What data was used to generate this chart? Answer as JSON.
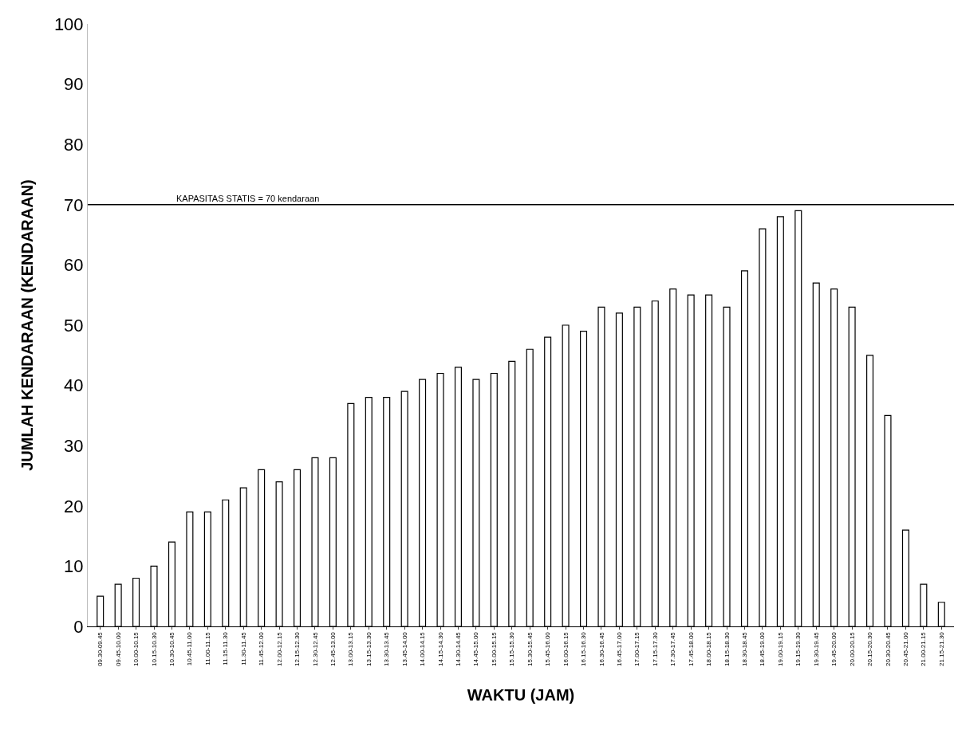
{
  "chart_data": {
    "type": "bar",
    "xlabel": "WAKTU (JAM)",
    "ylabel": "JUMLAH KENDARAAN (KENDARAAN)",
    "categories": [
      "09.30-09.45",
      "09.45-10.00",
      "10.00-10.15",
      "10.15-10.30",
      "10.30-10.45",
      "10.45-11.00",
      "11.00-11.15",
      "11.15-11.30",
      "11.30-11.45",
      "11.45-12.00",
      "12.00-12.15",
      "12.15-12.30",
      "12.30-12.45",
      "12.45-13.00",
      "13.00-13.15",
      "13.15-13.30",
      "13.30-13.45",
      "13.45-14.00",
      "14.00-14.15",
      "14.15-14.30",
      "14.30-14.45",
      "14.45-15.00",
      "15.00-15.15",
      "15.15-15.30",
      "15.30-15.45",
      "15.45-16.00",
      "16.00-16.15",
      "16.15-16.30",
      "16.30-16.45",
      "16.45-17.00",
      "17.00-17.15",
      "17.15-17.30",
      "17.30-17.45",
      "17.45-18.00",
      "18.00-18.15",
      "18.15-18.30",
      "18.30-18.45",
      "18.45-19.00",
      "19.00-19.15",
      "19.15-19.30",
      "19.30-19.45",
      "19.45-20.00",
      "20.00-20.15",
      "20.15-20.30",
      "20.30-20.45",
      "20.45-21.00",
      "21.00-21.15",
      "21.15-21.30"
    ],
    "values": [
      5,
      7,
      8,
      10,
      14,
      19,
      19,
      21,
      23,
      26,
      24,
      26,
      28,
      28,
      37,
      38,
      38,
      39,
      41,
      42,
      43,
      41,
      42,
      44,
      46,
      48,
      50,
      49,
      53,
      52,
      53,
      54,
      56,
      55,
      55,
      53,
      59,
      66,
      68,
      69,
      57,
      56,
      53,
      45,
      35,
      16,
      7,
      4
    ],
    "color": "#ffffff",
    "ylim": [
      0,
      100
    ],
    "yticks": [
      0,
      10,
      20,
      30,
      40,
      50,
      60,
      70,
      80,
      90,
      100
    ],
    "ref_lines": [
      {
        "axis": "y",
        "value": 70,
        "label": "KAPASITAS STATIS = 70 kendaraan",
        "color": "#000000",
        "line_style": "solid"
      }
    ]
  }
}
